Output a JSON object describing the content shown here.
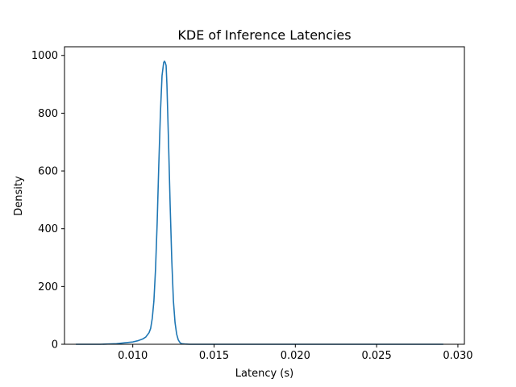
{
  "chart_data": {
    "type": "line",
    "title": "KDE of Inference Latencies",
    "xlabel": "Latency (s)",
    "ylabel": "Density",
    "xlim": [
      0.0058,
      0.0304
    ],
    "ylim": [
      0,
      1030
    ],
    "x_ticks": [
      0.01,
      0.015,
      0.02,
      0.025,
      0.03
    ],
    "x_tick_labels": [
      "0.010",
      "0.015",
      "0.020",
      "0.025",
      "0.030"
    ],
    "y_ticks": [
      0,
      200,
      400,
      600,
      800,
      1000
    ],
    "y_tick_labels": [
      "0",
      "200",
      "400",
      "600",
      "800",
      "1000"
    ],
    "grid": false,
    "series": [
      {
        "color": "#1f77b4",
        "x": [
          0.0065,
          0.008,
          0.009,
          0.0095,
          0.01,
          0.0103,
          0.0106,
          0.0108,
          0.011,
          0.0111,
          0.0112,
          0.0113,
          0.0114,
          0.0115,
          0.0116,
          0.0117,
          0.0118,
          0.0119,
          0.01195,
          0.012,
          0.01205,
          0.0121,
          0.0122,
          0.0123,
          0.0124,
          0.0125,
          0.0126,
          0.0127,
          0.0128,
          0.0129,
          0.013,
          0.0132,
          0.0135,
          0.014,
          0.015,
          0.018,
          0.022,
          0.026,
          0.0291
        ],
        "y": [
          0,
          0,
          2,
          5,
          8,
          12,
          18,
          25,
          40,
          55,
          90,
          150,
          260,
          420,
          620,
          800,
          930,
          975,
          980,
          975,
          965,
          900,
          700,
          480,
          290,
          150,
          75,
          35,
          15,
          6,
          2,
          1,
          0,
          0,
          0,
          0,
          0,
          0,
          0
        ]
      }
    ]
  }
}
